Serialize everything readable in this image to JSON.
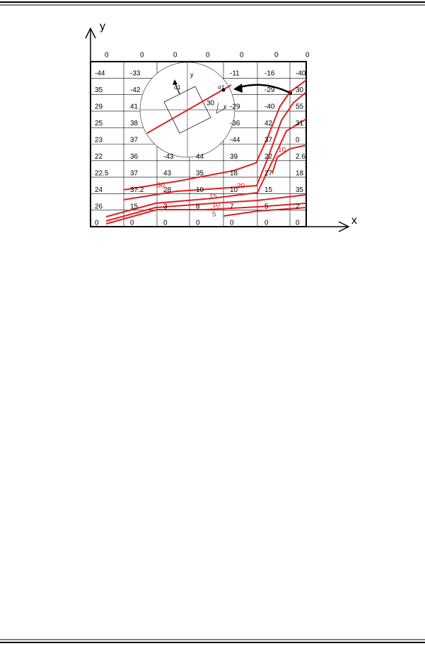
{
  "diagram": {
    "axis_labels": {
      "y": "y",
      "x": "x"
    },
    "cells": [
      [
        "0",
        "0",
        "0",
        "0",
        "0",
        "0",
        "0"
      ],
      [
        "-44",
        "-33",
        null,
        null,
        "-11",
        "-16",
        "-40"
      ],
      [
        "35",
        "-42",
        null,
        null,
        null,
        "-29",
        "30"
      ],
      [
        "29",
        "41",
        null,
        null,
        "-29",
        "-40",
        "55"
      ],
      [
        "25",
        "38",
        null,
        null,
        "-36",
        "42",
        "31"
      ],
      [
        "23",
        "37",
        null,
        null,
        "-44",
        "37",
        "0"
      ],
      [
        "22",
        "36",
        "-43",
        "44",
        "39",
        "22",
        "2.6"
      ],
      [
        "22.5",
        "37",
        "43",
        "35",
        "18",
        "27",
        "18"
      ],
      [
        "24",
        "37.2",
        "28",
        "10",
        "10",
        "15",
        "35"
      ],
      [
        "26",
        "15",
        "3",
        "8",
        "7",
        "5",
        "2"
      ],
      [
        "0",
        "0",
        "0",
        "0",
        "0",
        "0",
        "0"
      ]
    ],
    "contour_labels": [
      "30",
      "20",
      "15",
      "10",
      "5",
      "10"
    ],
    "inset": {
      "sigma_main": "σ1",
      "sigma_edge": "σ1",
      "y": "y",
      "x": "x",
      "angle": "30"
    }
  }
}
